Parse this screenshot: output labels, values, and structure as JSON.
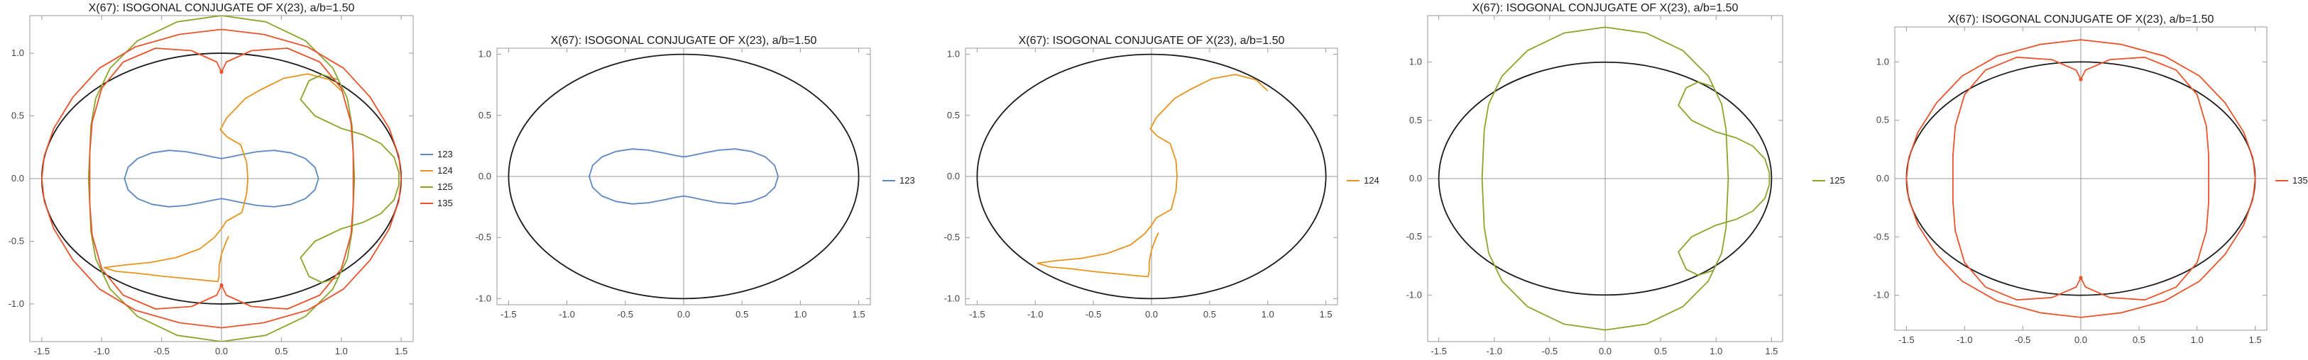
{
  "colors": {
    "ellipse": "#1a1a1a",
    "123": "#5b88c4",
    "124": "#e8941f",
    "125": "#8aa52a",
    "135": "#e8542b",
    "frame": "#9a9a9a"
  },
  "chart_data": [
    {
      "type": "line",
      "title": "X(67): ISOGONAL CONJUGATE OF X(23), a/b=1.50",
      "xlim": [
        -1.6,
        1.6
      ],
      "ylim": [
        -1.3,
        1.3
      ],
      "xticks": [
        "-1.5",
        "-1.0",
        "-0.5",
        "0.0",
        "0.5",
        "1.0",
        "1.5"
      ],
      "yticks": [
        "1.0",
        "0.5",
        "0.0",
        "-0.5",
        "-1.0"
      ],
      "legend": [
        "123",
        "124",
        "125",
        "135"
      ],
      "series": [
        "123",
        "124",
        "125",
        "135"
      ]
    },
    {
      "type": "line",
      "title": "X(67): ISOGONAL CONJUGATE OF X(23), a/b=1.50",
      "xlim": [
        -1.6,
        1.6
      ],
      "ylim": [
        -1.05,
        1.05
      ],
      "xticks": [
        "-1.5",
        "-1.0",
        "-0.5",
        "0.0",
        "0.5",
        "1.0",
        "1.5"
      ],
      "yticks": [
        "1.0",
        "0.5",
        "0.0",
        "-0.5",
        "-1.0"
      ],
      "legend": [
        "123"
      ],
      "series": [
        "123"
      ]
    },
    {
      "type": "line",
      "title": "X(67): ISOGONAL CONJUGATE OF X(23), a/b=1.50",
      "xlim": [
        -1.6,
        1.6
      ],
      "ylim": [
        -1.05,
        1.05
      ],
      "xticks": [
        "-1.5",
        "-1.0",
        "-0.5",
        "0.0",
        "0.5",
        "1.0",
        "1.5"
      ],
      "yticks": [
        "1.0",
        "0.5",
        "0.0",
        "-0.5",
        "-1.0"
      ],
      "legend": [
        "124"
      ],
      "series": [
        "124"
      ]
    },
    {
      "type": "line",
      "title": "X(67): ISOGONAL CONJUGATE OF X(23), a/b=1.50",
      "xlim": [
        -1.6,
        1.6
      ],
      "ylim": [
        -1.4,
        1.4
      ],
      "xticks": [
        "-1.5",
        "-1.0",
        "-0.5",
        "0.0",
        "0.5",
        "1.0",
        "1.5"
      ],
      "yticks": [
        "1.0",
        "0.5",
        "0.0",
        "-0.5",
        "-1.0"
      ],
      "legend": [
        "125"
      ],
      "series": [
        "125"
      ]
    },
    {
      "type": "line",
      "title": "X(67): ISOGONAL CONJUGATE OF X(23), a/b=1.50",
      "xlim": [
        -1.6,
        1.6
      ],
      "ylim": [
        -1.3,
        1.3
      ],
      "xticks": [
        "-1.5",
        "-1.0",
        "-0.5",
        "0.0",
        "0.5",
        "1.0",
        "1.5"
      ],
      "yticks": [
        "1.0",
        "0.5",
        "0.0",
        "-0.5",
        "-1.0"
      ],
      "legend": [
        "135"
      ],
      "series": [
        "135"
      ]
    }
  ],
  "curves": {
    "ellipse": {
      "a": 1.5,
      "b": 1.0
    },
    "123": [
      [
        0.81,
        0
      ],
      [
        0.78,
        0.09
      ],
      [
        0.7,
        0.16
      ],
      [
        0.58,
        0.205
      ],
      [
        0.44,
        0.225
      ],
      [
        0.3,
        0.215
      ],
      [
        0.16,
        0.19
      ],
      [
        0.06,
        0.17
      ],
      [
        0,
        0.16
      ],
      [
        -0.06,
        0.17
      ],
      [
        -0.16,
        0.19
      ],
      [
        -0.3,
        0.215
      ],
      [
        -0.44,
        0.225
      ],
      [
        -0.58,
        0.205
      ],
      [
        -0.7,
        0.16
      ],
      [
        -0.78,
        0.09
      ],
      [
        -0.81,
        0
      ],
      [
        -0.78,
        -0.09
      ],
      [
        -0.7,
        -0.16
      ],
      [
        -0.58,
        -0.205
      ],
      [
        -0.44,
        -0.225
      ],
      [
        -0.3,
        -0.215
      ],
      [
        -0.16,
        -0.19
      ],
      [
        -0.06,
        -0.17
      ],
      [
        0,
        -0.16
      ],
      [
        0.06,
        -0.17
      ],
      [
        0.16,
        -0.19
      ],
      [
        0.3,
        -0.215
      ],
      [
        0.44,
        -0.225
      ],
      [
        0.58,
        -0.205
      ],
      [
        0.7,
        -0.16
      ],
      [
        0.78,
        -0.09
      ],
      [
        0.81,
        0
      ]
    ],
    "124": [
      [
        1.0,
        0.7
      ],
      [
        0.9,
        0.79
      ],
      [
        0.72,
        0.835
      ],
      [
        0.52,
        0.8
      ],
      [
        0.33,
        0.71
      ],
      [
        0.2,
        0.64
      ],
      [
        0.12,
        0.56
      ],
      [
        0.06,
        0.5
      ],
      [
        0.04,
        0.48
      ],
      [
        -0.01,
        0.39
      ],
      [
        0.05,
        0.33
      ],
      [
        0.16,
        0.27
      ],
      [
        0.21,
        0.13
      ],
      [
        0.22,
        0
      ],
      [
        0.21,
        -0.12
      ],
      [
        0.17,
        -0.27
      ],
      [
        0.04,
        -0.34
      ],
      [
        0.0,
        -0.4
      ],
      [
        -0.06,
        -0.47
      ],
      [
        -0.18,
        -0.56
      ],
      [
        -0.38,
        -0.63
      ],
      [
        -0.6,
        -0.67
      ],
      [
        -0.82,
        -0.69
      ],
      [
        -0.98,
        -0.71
      ],
      [
        -0.88,
        -0.74
      ],
      [
        -0.7,
        -0.755
      ],
      [
        -0.48,
        -0.78
      ],
      [
        -0.26,
        -0.8
      ],
      [
        -0.1,
        -0.815
      ],
      [
        -0.03,
        -0.82
      ],
      [
        -0.02,
        -0.78
      ],
      [
        -0.02,
        -0.7
      ],
      [
        0.0,
        -0.6
      ],
      [
        0.04,
        -0.5
      ],
      [
        0.06,
        -0.46
      ]
    ],
    "125": [
      [
        0,
        1.3
      ],
      [
        0.37,
        1.25
      ],
      [
        0.7,
        1.1
      ],
      [
        0.93,
        0.88
      ],
      [
        1.05,
        0.64
      ],
      [
        1.09,
        0.42
      ],
      [
        1.1,
        0.2
      ],
      [
        1.11,
        0
      ],
      [
        1.1,
        -0.2
      ],
      [
        1.09,
        -0.42
      ],
      [
        1.05,
        -0.64
      ],
      [
        0.93,
        -0.88
      ],
      [
        0.7,
        -1.1
      ],
      [
        0.37,
        -1.25
      ],
      [
        0,
        -1.3
      ],
      [
        -0.37,
        -1.25
      ],
      [
        -0.7,
        -1.1
      ],
      [
        -0.93,
        -0.88
      ],
      [
        -1.05,
        -0.64
      ],
      [
        -1.09,
        -0.42
      ],
      [
        -1.1,
        -0.2
      ],
      [
        -1.11,
        0
      ],
      [
        -1.1,
        0.2
      ],
      [
        -1.09,
        0.42
      ],
      [
        -1.05,
        0.64
      ],
      [
        -0.93,
        0.88
      ],
      [
        -0.7,
        1.1
      ],
      [
        -0.37,
        1.25
      ],
      [
        0,
        1.3
      ]
    ],
    "125b": [
      [
        0.97,
        0.79
      ],
      [
        0.84,
        0.83
      ],
      [
        0.73,
        0.78
      ],
      [
        0.66,
        0.63
      ],
      [
        0.78,
        0.5
      ],
      [
        1.0,
        0.4
      ],
      [
        1.18,
        0.35
      ],
      [
        1.33,
        0.28
      ],
      [
        1.44,
        0.17
      ],
      [
        1.48,
        0.05
      ],
      [
        1.48,
        -0.05
      ],
      [
        1.44,
        -0.17
      ],
      [
        1.33,
        -0.28
      ],
      [
        1.18,
        -0.35
      ],
      [
        1.0,
        -0.4
      ],
      [
        0.78,
        -0.5
      ],
      [
        0.66,
        -0.63
      ],
      [
        0.73,
        -0.78
      ],
      [
        0.84,
        -0.83
      ],
      [
        0.97,
        -0.79
      ]
    ],
    "135": [
      [
        0,
        1.19
      ],
      [
        0.35,
        1.15
      ],
      [
        0.72,
        1.05
      ],
      [
        1.02,
        0.88
      ],
      [
        1.24,
        0.65
      ],
      [
        1.4,
        0.4
      ],
      [
        1.48,
        0.18
      ],
      [
        1.5,
        0
      ],
      [
        1.48,
        -0.18
      ],
      [
        1.4,
        -0.4
      ],
      [
        1.24,
        -0.65
      ],
      [
        1.02,
        -0.88
      ],
      [
        0.72,
        -1.05
      ],
      [
        0.35,
        -1.15
      ],
      [
        0,
        -1.19
      ],
      [
        -0.35,
        -1.15
      ],
      [
        -0.72,
        -1.05
      ],
      [
        -1.02,
        -0.88
      ],
      [
        -1.24,
        -0.65
      ],
      [
        -1.4,
        -0.4
      ],
      [
        -1.48,
        -0.18
      ],
      [
        -1.5,
        0
      ],
      [
        -1.48,
        0.18
      ],
      [
        -1.4,
        0.4
      ],
      [
        -1.24,
        0.65
      ],
      [
        -1.02,
        0.88
      ],
      [
        -0.72,
        1.05
      ],
      [
        -0.35,
        1.15
      ],
      [
        0,
        1.19
      ]
    ],
    "135b": [
      [
        0,
        0.85
      ],
      [
        0.04,
        0.93
      ],
      [
        0.25,
        1.02
      ],
      [
        0.55,
        1.04
      ],
      [
        0.82,
        0.93
      ],
      [
        1.0,
        0.72
      ],
      [
        1.08,
        0.45
      ],
      [
        1.1,
        0.2
      ],
      [
        1.1,
        0
      ],
      [
        1.1,
        -0.2
      ],
      [
        1.08,
        -0.45
      ],
      [
        1.0,
        -0.72
      ],
      [
        0.82,
        -0.93
      ],
      [
        0.55,
        -1.04
      ],
      [
        0.25,
        -1.02
      ],
      [
        0.04,
        -0.93
      ],
      [
        0,
        -0.85
      ],
      [
        -0.04,
        -0.93
      ],
      [
        -0.25,
        -1.02
      ],
      [
        -0.55,
        -1.04
      ],
      [
        -0.82,
        -0.93
      ],
      [
        -1.0,
        -0.72
      ],
      [
        -1.08,
        -0.45
      ],
      [
        -1.1,
        -0.2
      ],
      [
        -1.1,
        0
      ],
      [
        -1.1,
        0.2
      ],
      [
        -1.08,
        0.45
      ],
      [
        -1.0,
        0.72
      ],
      [
        -0.82,
        0.93
      ],
      [
        -0.55,
        1.04
      ],
      [
        -0.25,
        1.02
      ],
      [
        -0.04,
        0.93
      ],
      [
        0,
        0.85
      ]
    ]
  }
}
